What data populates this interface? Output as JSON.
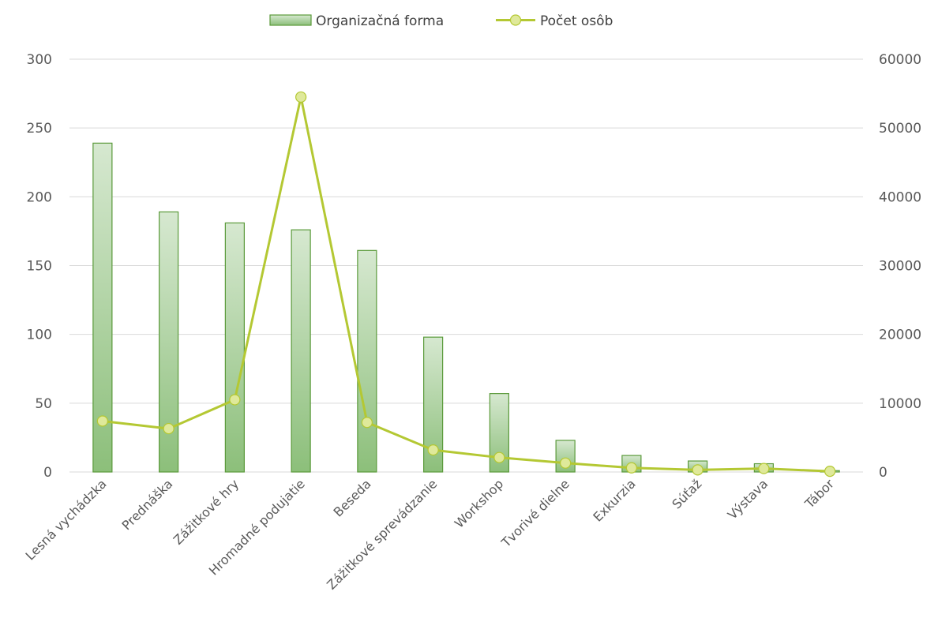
{
  "chart_data": {
    "type": "bar",
    "categories": [
      "Lesná vychádzka",
      "Prednáška",
      "Zážitkové hry",
      "Hromadné podujatie",
      "Beseda",
      "Zážitkové sprevádzanie",
      "Workshop",
      "Tvorivé dielne",
      "Exkurzia",
      "Súťaž",
      "Výstava",
      "Tábor"
    ],
    "series": [
      {
        "name": "Organizačná forma",
        "kind": "bar",
        "axis": "left",
        "values": [
          239,
          189,
          181,
          176,
          161,
          98,
          57,
          23,
          12,
          8,
          6,
          1
        ]
      },
      {
        "name": "Počet osôb",
        "kind": "line",
        "axis": "right",
        "values": [
          7400,
          6300,
          10500,
          54500,
          7200,
          3200,
          2100,
          1300,
          600,
          300,
          500,
          100
        ]
      }
    ],
    "ylim_left": [
      0,
      300
    ],
    "ylim_right": [
      0,
      60000
    ],
    "yticks_left": [
      "0",
      "50",
      "100",
      "150",
      "200",
      "250",
      "300"
    ],
    "yticks_right": [
      "0",
      "10000",
      "20000",
      "30000",
      "40000",
      "50000",
      "60000"
    ],
    "legend_position": "top-center",
    "grid": true,
    "colors": {
      "bar_stroke": "#5a9a3a",
      "bar_top": "#d6e8d0",
      "bar_bottom": "#8cbf7a",
      "line": "#b4c833",
      "marker_fill": "#dfe99a",
      "grid": "#d9d9d9"
    }
  }
}
